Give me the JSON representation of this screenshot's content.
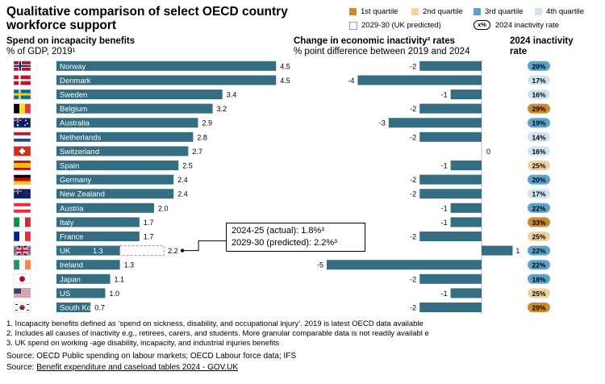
{
  "title": "Qualitative comparison of select OECD country workforce support",
  "legend": {
    "q1": "1st quartile",
    "q2": "2nd quartile",
    "q3": "3rd quartile",
    "q4": "4th quartile",
    "predicted": "2029-30 (UK predicted)",
    "rate_symbol": "x%",
    "rate_label": "2024 inactivity rate"
  },
  "colors": {
    "bar": "#356d83",
    "q1": "#c98b2b",
    "q2": "#f0d3a2",
    "q3": "#5ba3ca",
    "q4": "#cfe6f2",
    "predicted_outline": "#b57fb8"
  },
  "panels": {
    "left_title": "Spend on incapacity benefits",
    "left_subtitle": "% of GDP, 2019¹",
    "mid_title": "Change in economic inactivity² rates",
    "mid_subtitle": "% point difference between 2019 and 2024",
    "right_title": "2024 inactivity rate"
  },
  "callout": {
    "line1": "2024-25 (actual): 1.8%³",
    "line2": "2029-30 (predicted): 2.2%³"
  },
  "chart_data": {
    "type": "bar",
    "countries": [
      "Norway",
      "Denmark",
      "Sweden",
      "Belgium",
      "Australia",
      "Netherlands",
      "Switzerland",
      "Spain",
      "Germany",
      "New Zealand",
      "Austria",
      "Italy",
      "France",
      "UK",
      "Ireland",
      "Japan",
      "US",
      "South Korea"
    ],
    "spend_pct_gdp": [
      4.5,
      4.5,
      3.4,
      3.2,
      2.9,
      2.8,
      2.7,
      2.5,
      2.4,
      2.4,
      2.0,
      1.7,
      1.7,
      1.3,
      1.3,
      1.1,
      1.0,
      0.7
    ],
    "uk_predicted_2029_30": 2.2,
    "inactivity_change_pp": [
      -2,
      -4,
      -1,
      -2,
      -3,
      -2,
      0,
      -1,
      -2,
      -2,
      -1,
      -1,
      -2,
      1,
      -5,
      -2,
      -1,
      -2
    ],
    "inactivity_rate_2024_pct": [
      20,
      17,
      16,
      29,
      19,
      14,
      16,
      25,
      20,
      17,
      22,
      33,
      25,
      22,
      22,
      18,
      25,
      29
    ],
    "inactivity_rate_labels": [
      "20%",
      "17%",
      "16%",
      "29%",
      "19%",
      "14%",
      "16%",
      "25%",
      "20%",
      "17%",
      "22%",
      "33%",
      "25%",
      "22%",
      "22%",
      "18%",
      "25%",
      "29%"
    ],
    "inactivity_rate_quartile": [
      3,
      4,
      4,
      1,
      3,
      4,
      4,
      2,
      3,
      4,
      3,
      1,
      2,
      3,
      3,
      3,
      2,
      1
    ]
  },
  "footnotes": [
    "1.   Incapacity benefits defined as ‘spend on sickness, disability, and occupational injury’. 2019 is latest OECD data available",
    "2.   Includes all causes of inactivity e.g., retirees, carers, and students. More granular comparable data is not readily availabl e",
    "3.   UK spend on working -age disability, incapacity, and industrial injuries benefits"
  ],
  "source1": "Source: OECD Public spending on labour markets; OECD Labour force data; IFS",
  "source2_prefix": "Source: ",
  "source2_link": "Benefit expenditure and caseload tables 2024  - GOV.UK"
}
